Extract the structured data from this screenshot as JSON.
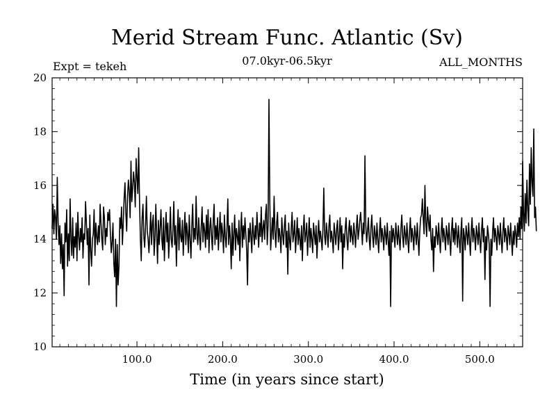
{
  "chart_data": {
    "type": "line",
    "title": "Merid Stream Func. Atlantic (Sv)",
    "subtitle_left": "Expt = tekeh",
    "subtitle_center": "07.0kyr-06.5kyr",
    "subtitle_right": "ALL_MONTHS",
    "xlabel": "Time (in years since start)",
    "ylabel": "",
    "xlim": [
      1,
      550
    ],
    "ylim": [
      10,
      20
    ],
    "x_ticks": [
      100,
      200,
      300,
      400,
      500
    ],
    "x_tick_labels": [
      "100.0",
      "200.0",
      "300.0",
      "400.0",
      "500.0"
    ],
    "y_ticks": [
      10,
      12,
      14,
      16,
      18,
      20
    ],
    "y_tick_labels": [
      "10",
      "12",
      "14",
      "16",
      "18",
      "20"
    ],
    "grid": false,
    "series": [
      {
        "name": "Merid Stream Func. Atlantic",
        "color": "#000000",
        "x_start": 1,
        "x_step": 1,
        "values": [
          14.4,
          15.3,
          14.2,
          15.1,
          14.8,
          14.0,
          16.3,
          14.6,
          13.8,
          14.5,
          13.1,
          14.2,
          12.9,
          13.8,
          11.9,
          14.6,
          13.9,
          15.1,
          13.0,
          14.2,
          13.2,
          15.5,
          14.0,
          13.4,
          14.8,
          13.3,
          14.1,
          13.7,
          14.6,
          13.2,
          15.0,
          14.1,
          13.6,
          14.4,
          13.9,
          14.8,
          13.3,
          14.2,
          14.0,
          15.4,
          14.6,
          13.8,
          14.4,
          12.3,
          14.9,
          13.6,
          13.0,
          14.0,
          14.2,
          15.1,
          13.4,
          14.6,
          14.1,
          13.8,
          14.5,
          13.9,
          15.3,
          14.6,
          14.0,
          13.6,
          15.2,
          14.8,
          13.8,
          14.4,
          14.1,
          15.0,
          14.7,
          15.1,
          14.2,
          13.5,
          13.9,
          14.6,
          13.1,
          12.6,
          14.0,
          11.5,
          13.8,
          12.3,
          13.0,
          14.8,
          14.4,
          15.2,
          13.8,
          14.6,
          15.5,
          16.1,
          15.0,
          14.3,
          15.6,
          16.2,
          15.8,
          14.8,
          16.9,
          15.4,
          15.9,
          16.5,
          16.1,
          15.2,
          17.0,
          16.3,
          15.7,
          17.4,
          15.4,
          14.0,
          13.2,
          14.8,
          15.3,
          14.1,
          13.7,
          14.5,
          15.6,
          14.3,
          14.0,
          13.5,
          14.2,
          15.0,
          13.8,
          14.6,
          14.9,
          13.4,
          14.0,
          15.3,
          14.2,
          13.1,
          14.7,
          13.8,
          14.4,
          15.1,
          14.0,
          13.6,
          14.8,
          13.2,
          14.3,
          15.0,
          13.9,
          14.6,
          13.3,
          14.1,
          15.2,
          14.0,
          13.7,
          14.4,
          15.4,
          13.8,
          14.5,
          13.0,
          14.2,
          15.1,
          13.6,
          14.8,
          14.1,
          13.9,
          14.7,
          13.4,
          14.3,
          15.0,
          13.8,
          14.6,
          14.2,
          13.5,
          14.9,
          14.0,
          13.3,
          14.5,
          15.3,
          13.9,
          14.4,
          14.0,
          15.6,
          14.2,
          13.8,
          14.8,
          14.1,
          13.6,
          14.5,
          15.2,
          13.9,
          14.6,
          14.3,
          13.7,
          14.9,
          14.0,
          15.1,
          13.5,
          14.4,
          14.8,
          14.1,
          13.6,
          14.7,
          15.3,
          13.8,
          14.5,
          14.0,
          14.8,
          13.6,
          14.3,
          15.0,
          13.9,
          14.6,
          14.2,
          13.5,
          14.9,
          14.1,
          13.7,
          14.4,
          15.5,
          13.8,
          14.5,
          14.0,
          12.9,
          14.6,
          13.4,
          14.2,
          14.9,
          13.6,
          14.4,
          14.1,
          13.8,
          14.7,
          13.2,
          14.3,
          15.0,
          13.7,
          14.5,
          14.0,
          14.8,
          14.2,
          13.6,
          12.3,
          14.4,
          13.9,
          14.6,
          14.1,
          13.5,
          14.8,
          14.2,
          13.8,
          14.5,
          14.0,
          15.0,
          14.3,
          13.7,
          14.6,
          14.1,
          15.2,
          13.9,
          14.4,
          14.7,
          14.0,
          14.9,
          15.3,
          13.8,
          14.5,
          19.2,
          15.4,
          13.6,
          14.2,
          14.8,
          14.0,
          15.6,
          14.3,
          13.7,
          14.6,
          15.0,
          13.9,
          14.4,
          14.1,
          13.5,
          14.8,
          14.2,
          13.8,
          14.5,
          14.9,
          13.7,
          14.3,
          12.7,
          14.6,
          14.0,
          13.6,
          14.4,
          15.0,
          13.9,
          14.2,
          14.7,
          13.5,
          14.1,
          14.8,
          13.8,
          14.4,
          14.0,
          13.6,
          14.5,
          13.2,
          14.3,
          14.9,
          13.9,
          14.2,
          14.6,
          13.4,
          14.1,
          14.8,
          13.7,
          14.4,
          14.0,
          13.5,
          14.6,
          14.2,
          13.8,
          14.5,
          13.3,
          14.1,
          14.7,
          13.9,
          14.3,
          14.0,
          13.6,
          14.4,
          15.9,
          14.1,
          13.8,
          14.6,
          14.2,
          13.7,
          14.5,
          14.9,
          13.9,
          14.3,
          14.0,
          13.5,
          14.6,
          14.2,
          13.8,
          14.4,
          14.7,
          13.6,
          14.1,
          14.8,
          13.9,
          14.5,
          12.9,
          14.2,
          13.7,
          14.4,
          14.8,
          14.0,
          13.6,
          14.3,
          14.7,
          13.9,
          14.5,
          14.1,
          13.8,
          14.6,
          14.2,
          13.7,
          14.4,
          14.9,
          14.0,
          14.3,
          14.7,
          15.0,
          14.4,
          13.8,
          14.6,
          14.2,
          17.1,
          14.5,
          13.9,
          14.3,
          14.8,
          14.0,
          13.6,
          14.4,
          14.9,
          14.1,
          13.7,
          14.5,
          14.2,
          13.8,
          14.6,
          14.0,
          13.5,
          14.3,
          14.8,
          13.9,
          14.4,
          14.1,
          13.6,
          14.5,
          14.2,
          13.8,
          14.6,
          14.0,
          13.4,
          14.3,
          11.5,
          14.5,
          13.9,
          14.4,
          14.1,
          13.7,
          14.6,
          14.2,
          13.8,
          14.5,
          14.0,
          13.6,
          14.4,
          14.9,
          14.1,
          13.7,
          14.5,
          14.2,
          13.8,
          14.6,
          14.0,
          13.5,
          14.3,
          14.8,
          13.9,
          14.4,
          14.1,
          13.6,
          14.5,
          14.2,
          13.8,
          14.6,
          14.0,
          13.4,
          14.3,
          14.8,
          14.9,
          15.5,
          14.8,
          14.2,
          16.0,
          14.6,
          14.1,
          15.2,
          14.7,
          14.3,
          14.9,
          14.0,
          13.6,
          14.4,
          12.8,
          14.1,
          13.7,
          14.5,
          14.2,
          13.8,
          14.6,
          14.0,
          13.5,
          14.3,
          14.8,
          13.9,
          14.4,
          14.1,
          13.6,
          14.5,
          14.2,
          13.8,
          14.6,
          14.0,
          13.4,
          14.3,
          14.8,
          13.9,
          14.4,
          13.8,
          14.6,
          14.2,
          13.7,
          14.5,
          14.0,
          13.5,
          14.3,
          14.8,
          11.7,
          14.4,
          14.1,
          13.6,
          14.5,
          14.2,
          13.8,
          14.6,
          14.0,
          13.4,
          14.3,
          14.8,
          13.9,
          14.4,
          14.1,
          13.6,
          14.5,
          14.2,
          13.8,
          14.6,
          14.0,
          13.5,
          14.3,
          14.8,
          13.9,
          14.4,
          12.5,
          14.1,
          13.6,
          14.5,
          14.2,
          13.8,
          11.5,
          14.0,
          13.4,
          14.3,
          14.8,
          13.9,
          14.4,
          14.1,
          13.6,
          14.5,
          14.2,
          13.8,
          14.6,
          14.0,
          13.5,
          14.3,
          14.8,
          13.9,
          14.4,
          14.1,
          13.6,
          14.5,
          14.2,
          13.8,
          14.6,
          14.0,
          13.4,
          14.3,
          13.8,
          14.5,
          14.2,
          13.7,
          14.6,
          14.1,
          14.8,
          14.0,
          15.2,
          14.4,
          16.9,
          15.0,
          14.3,
          15.7,
          14.6,
          16.2,
          15.1,
          14.5,
          16.8,
          15.3,
          17.4,
          16.1,
          15.6,
          18.1,
          14.8,
          15.2,
          14.3
        ]
      }
    ]
  }
}
